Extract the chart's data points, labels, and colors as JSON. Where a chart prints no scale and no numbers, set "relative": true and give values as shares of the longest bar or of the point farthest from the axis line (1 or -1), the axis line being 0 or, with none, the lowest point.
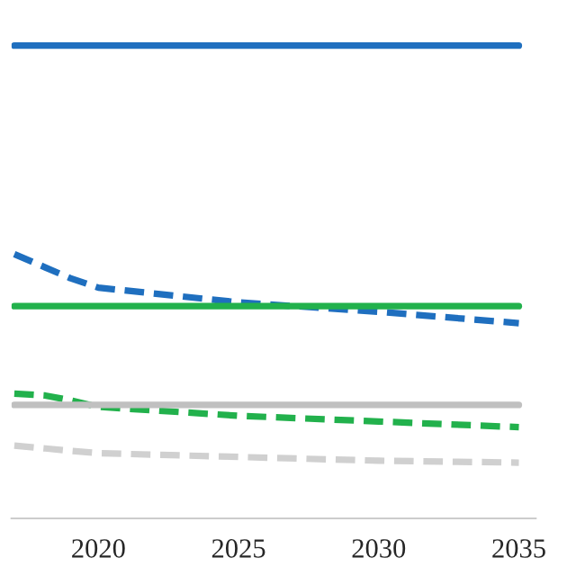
{
  "chart_data": {
    "type": "line",
    "relative": true,
    "x": [
      2017,
      2018.1,
      2019,
      2020,
      2025,
      2030,
      2035
    ],
    "xlim": [
      2016.9,
      2035.6
    ],
    "xticks": [
      2020,
      2025,
      2030,
      2035
    ],
    "grid": false,
    "tick_labels": "x",
    "series": [
      {
        "color": "#1f6fbf",
        "line_style": "solid",
        "values": [
          1.0,
          1.0,
          1.0,
          1.0,
          1.0,
          1.0,
          1.0
        ]
      },
      {
        "color": "#1f6fbf",
        "line_style": "dashed",
        "values": [
          0.559,
          0.531,
          0.508,
          0.488,
          0.457,
          0.437,
          0.413
        ]
      },
      {
        "color": "#22b14c",
        "line_style": "solid",
        "values": [
          0.449,
          0.449,
          0.449,
          0.449,
          0.449,
          0.449,
          0.449
        ]
      },
      {
        "color": "#22b14c",
        "line_style": "dashed",
        "values": [
          0.264,
          0.26,
          0.25,
          0.236,
          0.217,
          0.205,
          0.193
        ]
      },
      {
        "color": "#c0c0c0",
        "line_style": "solid",
        "values": [
          0.24,
          0.24,
          0.24,
          0.24,
          0.24,
          0.24,
          0.24
        ]
      },
      {
        "color": "#d0d0d0",
        "line_style": "dashed",
        "values": [
          0.154,
          0.148,
          0.143,
          0.138,
          0.13,
          0.122,
          0.118
        ]
      }
    ]
  }
}
